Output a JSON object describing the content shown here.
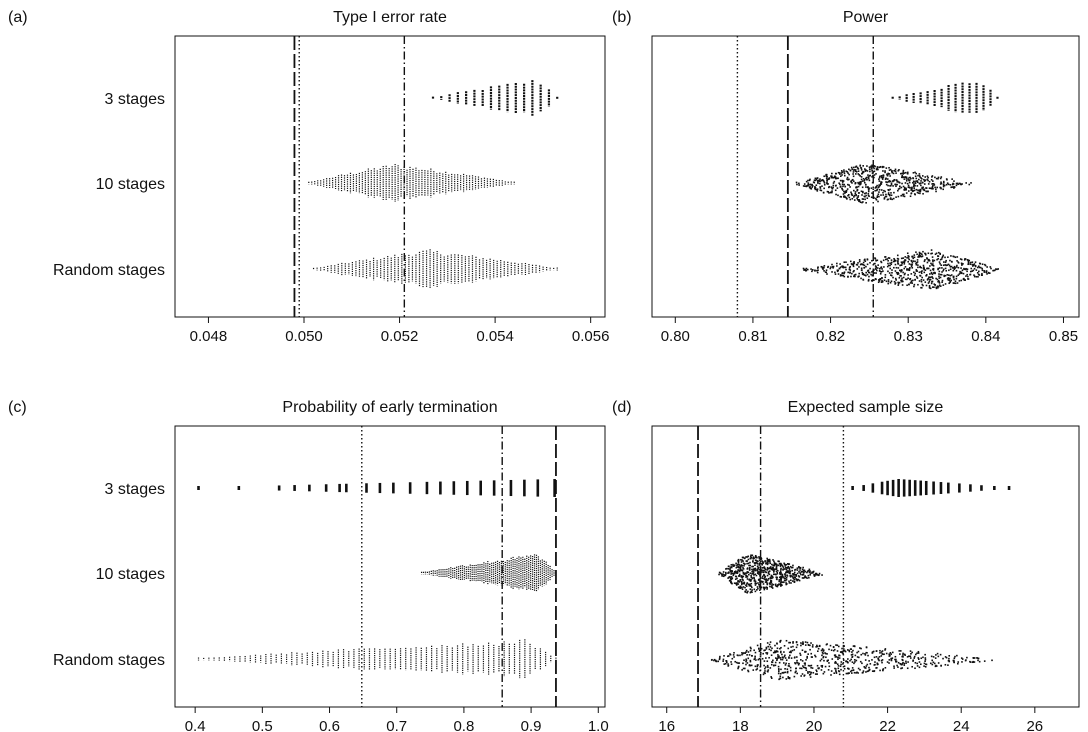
{
  "chart_data": [
    {
      "type": "scatter",
      "panel_label": "(a)",
      "title": "Type I error rate",
      "categories": [
        "3 stages",
        "10 stages",
        "Random stages"
      ],
      "xlim": [
        0.0473,
        0.0563
      ],
      "xticks": [
        0.048,
        0.05,
        0.052,
        0.054,
        0.056
      ],
      "tick_decimals": 3,
      "reference_lines": [
        {
          "style": "long-dash",
          "value": 0.0498
        },
        {
          "style": "dotted",
          "value": 0.0499
        },
        {
          "style": "dash-dot",
          "value": 0.0521
        }
      ],
      "series": [
        {
          "category": "3 stages",
          "shape": "bars",
          "min": 0.0527,
          "max": 0.0553,
          "mode": 0.0549,
          "skew": "left"
        },
        {
          "category": "10 stages",
          "shape": "violin",
          "min": 0.0501,
          "max": 0.0544,
          "mode": 0.0519,
          "skew": "right"
        },
        {
          "category": "Random stages",
          "shape": "violin",
          "min": 0.0502,
          "max": 0.0553,
          "mode": 0.0526,
          "skew": "right"
        }
      ]
    },
    {
      "type": "scatter",
      "panel_label": "(b)",
      "title": "Power",
      "categories": [
        "3 stages",
        "10 stages",
        "Random stages"
      ],
      "xlim": [
        0.797,
        0.852
      ],
      "xticks": [
        0.8,
        0.81,
        0.82,
        0.83,
        0.84,
        0.85
      ],
      "tick_decimals": 2,
      "reference_lines": [
        {
          "style": "dotted",
          "value": 0.808
        },
        {
          "style": "long-dash",
          "value": 0.8145
        },
        {
          "style": "dash-dot",
          "value": 0.8255
        }
      ],
      "series": [
        {
          "category": "3 stages",
          "shape": "bars",
          "min": 0.828,
          "max": 0.8415,
          "mode": 0.839,
          "skew": "left"
        },
        {
          "category": "10 stages",
          "shape": "cloud",
          "min": 0.8155,
          "max": 0.838,
          "mode": 0.8245,
          "skew": "right"
        },
        {
          "category": "Random stages",
          "shape": "cloud",
          "min": 0.8163,
          "max": 0.8415,
          "mode": 0.833,
          "skew": "left"
        }
      ]
    },
    {
      "type": "scatter",
      "panel_label": "(c)",
      "title": "Probability of early termination",
      "categories": [
        "3 stages",
        "10 stages",
        "Random stages"
      ],
      "xlim": [
        0.37,
        1.01
      ],
      "xticks": [
        0.4,
        0.5,
        0.6,
        0.7,
        0.8,
        0.9,
        1.0
      ],
      "tick_decimals": 1,
      "reference_lines": [
        {
          "style": "dotted",
          "value": 0.648
        },
        {
          "style": "dash-dot",
          "value": 0.857
        },
        {
          "style": "long-dash",
          "value": 0.937
        }
      ],
      "series": [
        {
          "category": "3 stages",
          "shape": "discrete",
          "min": 0.405,
          "max": 0.937,
          "mode": 0.937,
          "skew": "left",
          "values": [
            0.405,
            0.465,
            0.525,
            0.548,
            0.57,
            0.595,
            0.615,
            0.625,
            0.655,
            0.675,
            0.695,
            0.72,
            0.745,
            0.765,
            0.785,
            0.805,
            0.825,
            0.845,
            0.87,
            0.89,
            0.91,
            0.935
          ]
        },
        {
          "category": "10 stages",
          "shape": "violin",
          "min": 0.737,
          "max": 0.937,
          "mode": 0.91,
          "skew": "left"
        },
        {
          "category": "Random stages",
          "shape": "violin",
          "min": 0.405,
          "max": 0.937,
          "mode": 0.895,
          "skew": "left"
        }
      ]
    },
    {
      "type": "scatter",
      "panel_label": "(d)",
      "title": "Expected sample size",
      "categories": [
        "3 stages",
        "10 stages",
        "Random stages"
      ],
      "xlim": [
        15.6,
        27.2
      ],
      "xticks": [
        16,
        18,
        20,
        22,
        24,
        26
      ],
      "tick_decimals": 0,
      "reference_lines": [
        {
          "style": "long-dash",
          "value": 16.85
        },
        {
          "style": "dash-dot",
          "value": 18.55
        },
        {
          "style": "dotted",
          "value": 20.8
        }
      ],
      "series": [
        {
          "category": "3 stages",
          "shape": "discrete",
          "min": 21.0,
          "max": 25.3,
          "mode": 22.3,
          "skew": "right",
          "values": [
            21.05,
            21.35,
            21.6,
            21.85,
            22.0,
            22.15,
            22.3,
            22.45,
            22.6,
            22.75,
            22.9,
            23.05,
            23.25,
            23.45,
            23.65,
            23.95,
            24.25,
            24.55,
            24.9,
            25.3
          ]
        },
        {
          "category": "10 stages",
          "shape": "cloud",
          "min": 17.4,
          "max": 20.2,
          "mode": 18.2,
          "skew": "right"
        },
        {
          "category": "Random stages",
          "shape": "cloud",
          "min": 17.2,
          "max": 24.9,
          "mode": 19.0,
          "skew": "right"
        }
      ]
    }
  ]
}
